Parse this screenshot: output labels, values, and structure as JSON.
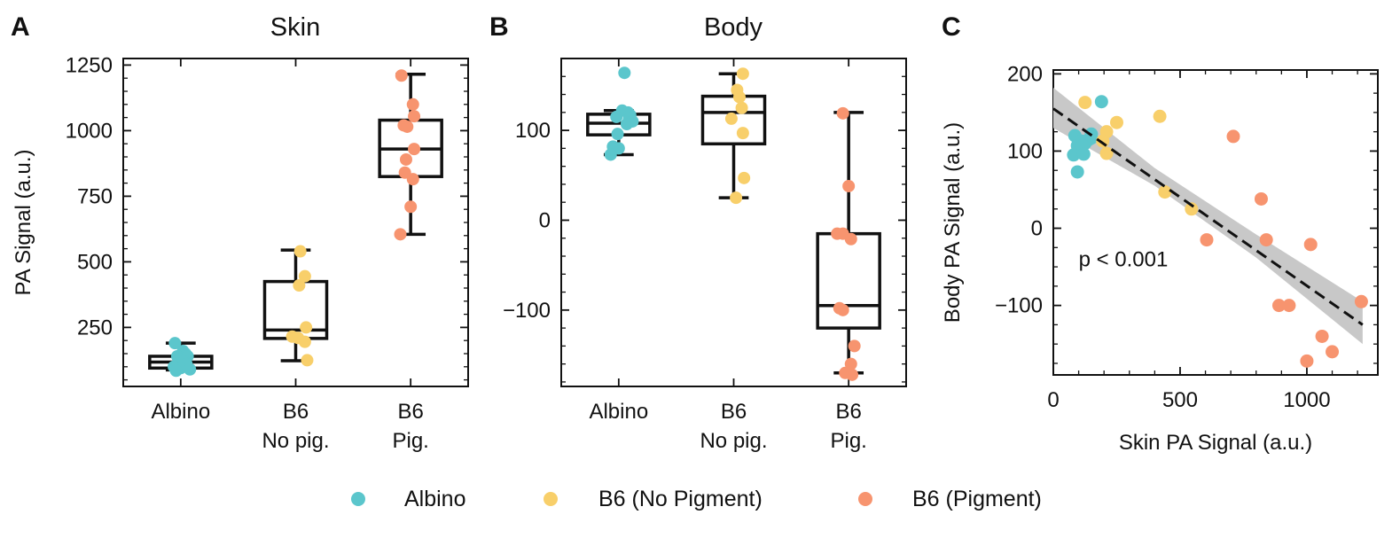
{
  "panels": {
    "a": {
      "letter": "A",
      "title": "Skin"
    },
    "b": {
      "letter": "B",
      "title": "Body"
    },
    "c": {
      "letter": "C",
      "title": ""
    }
  },
  "legend": [
    {
      "label": "Albino",
      "color": "#5bc6cc"
    },
    {
      "label": "B6 (No Pigment)",
      "color": "#f8cf6a"
    },
    {
      "label": "B6 (Pigment)",
      "color": "#f7946f"
    }
  ],
  "chart_data": [
    {
      "type": "box",
      "title": "Skin",
      "ylabel": "PA Signal (a.u.)",
      "xlabel": "",
      "ylim": [
        25,
        1275
      ],
      "yticks": [
        250,
        500,
        750,
        1000,
        1250
      ],
      "grid": false,
      "categories": [
        "Albino",
        "B6\nNo pig.",
        "B6\nPig."
      ],
      "boxes": [
        {
          "group": "Albino",
          "whisker_low": 88,
          "q1": 95,
          "median": 118,
          "q3": 140,
          "whisker_high": 190
        },
        {
          "group": "B6 (No Pigment)",
          "whisker_low": 123,
          "q1": 208,
          "median": 240,
          "q3": 425,
          "whisker_high": 545
        },
        {
          "group": "B6 (Pigment)",
          "whisker_low": 605,
          "q1": 825,
          "median": 930,
          "q3": 1040,
          "whisker_high": 1215
        }
      ],
      "points": [
        {
          "group": "Albino",
          "x": [
            -0.05,
            0.02,
            0.04,
            -0.03,
            0.06,
            -0.02,
            0.03,
            0.05,
            -0.06,
            0.0,
            0.08,
            -0.04
          ],
          "y": [
            190,
            160,
            150,
            140,
            140,
            130,
            120,
            110,
            100,
            95,
            90,
            85
          ]
        },
        {
          "group": "B6 (No Pigment)",
          "x": [
            0.04,
            0.08,
            0.03,
            0.09,
            -0.03,
            0.02,
            0.08,
            0.1
          ],
          "y": [
            540,
            445,
            410,
            250,
            215,
            210,
            195,
            125
          ]
        },
        {
          "group": "B6 (Pigment)",
          "x": [
            -0.08,
            0.02,
            0.03,
            -0.06,
            -0.03,
            0.03,
            -0.04,
            -0.05,
            0.02,
            0.0,
            -0.09
          ],
          "y": [
            1210,
            1100,
            1055,
            1020,
            1015,
            930,
            890,
            840,
            815,
            710,
            605
          ]
        }
      ]
    },
    {
      "type": "box",
      "title": "Body",
      "ylabel": "",
      "xlabel": "",
      "ylim": [
        -185,
        180
      ],
      "yticks": [
        -100,
        0,
        100
      ],
      "grid": false,
      "categories": [
        "Albino",
        "B6\nNo pig.",
        "B6\nPig."
      ],
      "boxes": [
        {
          "group": "Albino",
          "whisker_low": 73,
          "q1": 95,
          "median": 108,
          "q3": 118,
          "whisker_high": 122
        },
        {
          "group": "B6 (No Pigment)",
          "whisker_low": 25,
          "q1": 85,
          "median": 120,
          "q3": 138,
          "whisker_high": 163
        },
        {
          "group": "B6 (Pigment)",
          "whisker_low": -170,
          "q1": -120,
          "median": -95,
          "q3": -15,
          "whisker_high": 120
        }
      ],
      "points": [
        {
          "group": "Albino",
          "x": [
            0.05,
            0.03,
            0.08,
            0.1,
            -0.02,
            0.09,
            0.12,
            0.07,
            -0.01,
            -0.05,
            0.0,
            -0.07
          ],
          "y": [
            164,
            122,
            120,
            117,
            115,
            113,
            110,
            107,
            96,
            82,
            80,
            73
          ]
        },
        {
          "group": "B6 (No Pigment)",
          "x": [
            0.08,
            0.03,
            0.05,
            0.07,
            -0.02,
            0.08,
            0.09,
            0.02
          ],
          "y": [
            163,
            145,
            137,
            125,
            113,
            97,
            47,
            25
          ]
        },
        {
          "group": "B6 (Pigment)",
          "x": [
            -0.05,
            0.0,
            -0.1,
            -0.05,
            0.02,
            -0.08,
            -0.05,
            0.05,
            0.02,
            -0.03,
            0.03
          ],
          "y": [
            119,
            38,
            -15,
            -15,
            -21,
            -98,
            -100,
            -140,
            -160,
            -170,
            -172
          ]
        }
      ]
    },
    {
      "type": "scatter",
      "title": "",
      "xlabel": "Skin PA Signal (a.u.)",
      "ylabel": "Body PA Signal (a.u.)",
      "xlim": [
        0,
        1280
      ],
      "ylim": [
        -190,
        205
      ],
      "xticks": [
        0,
        500,
        1000
      ],
      "yticks": [
        -100,
        0,
        100,
        200
      ],
      "grid": false,
      "series": [
        {
          "name": "Albino",
          "x": [
            85,
            190,
            150,
            125,
            140,
            110,
            95,
            115,
            150,
            80,
            120,
            95
          ],
          "y": [
            120,
            164,
            117,
            110,
            115,
            113,
            107,
            107,
            122,
            95,
            96,
            73
          ]
        },
        {
          "name": "B6 (No Pigment)",
          "x": [
            125,
            420,
            250,
            210,
            195,
            210,
            545,
            440
          ],
          "y": [
            163,
            145,
            137,
            125,
            113,
            97,
            25,
            47
          ]
        },
        {
          "name": "B6 (Pigment)",
          "x": [
            710,
            820,
            840,
            605,
            1015,
            890,
            930,
            1060,
            1215,
            1000,
            1100
          ],
          "y": [
            119,
            38,
            -15,
            -15,
            -21,
            -100,
            -100,
            -140,
            -95,
            -172,
            -160
          ]
        }
      ],
      "fit_line": {
        "style": "dashed",
        "x": [
          0,
          1220
        ],
        "y": [
          155,
          -125
        ]
      },
      "confidence_band": {
        "x": [
          0,
          400,
          800,
          1220
        ],
        "lower": [
          130,
          55,
          -38,
          -150
        ],
        "upper": [
          182,
          78,
          -8,
          -95
        ]
      },
      "annotations": [
        {
          "text": "p < 0.001",
          "x": 100,
          "y": -40
        }
      ]
    }
  ]
}
